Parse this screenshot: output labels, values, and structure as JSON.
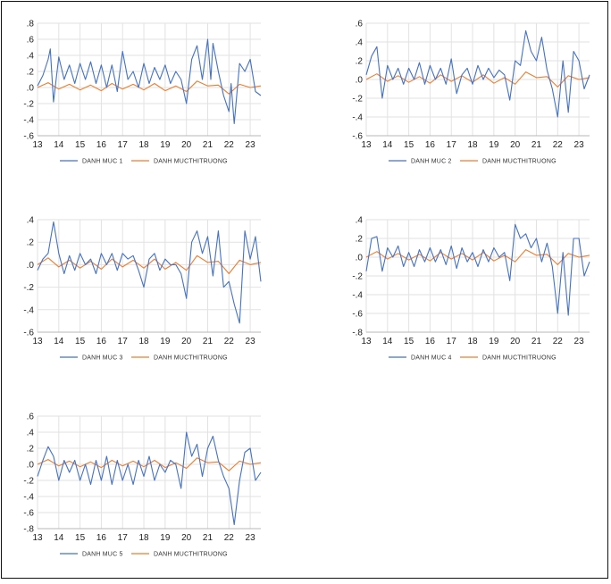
{
  "colors": {
    "portfolio": "#4472c4",
    "market": "#ed7d31",
    "grid": "#e2e2e2",
    "axis": "#b7b7b7"
  },
  "chart_data": [
    {
      "type": "line",
      "id": "dm1",
      "x_ticks": [
        "13",
        "14",
        "15",
        "16",
        "17",
        "18",
        "19",
        "20",
        "21",
        "22",
        "23"
      ],
      "x_range": [
        13.0,
        23.5
      ],
      "y_ticks": [
        ".8",
        ".6",
        ".4",
        ".2",
        ".0",
        "-.2",
        "-.4",
        "-.6"
      ],
      "ylim": [
        -0.6,
        0.8
      ],
      "legend": [
        "DANH MUC 1",
        "DANH MUCTHITRUONG"
      ],
      "series": [
        {
          "name": "DANH MUC 1",
          "x": [
            13.0,
            13.25,
            13.5,
            13.6,
            13.75,
            14.0,
            14.25,
            14.5,
            14.75,
            15.0,
            15.25,
            15.5,
            15.75,
            16.0,
            16.25,
            16.5,
            16.75,
            17.0,
            17.25,
            17.5,
            17.75,
            18.0,
            18.25,
            18.5,
            18.75,
            19.0,
            19.25,
            19.5,
            19.75,
            20.0,
            20.25,
            20.5,
            20.75,
            21.0,
            21.15,
            21.25,
            21.5,
            21.75,
            22.0,
            22.1,
            22.25,
            22.5,
            22.75,
            23.0,
            23.25,
            23.5
          ],
          "values": [
            0.02,
            0.15,
            0.35,
            0.48,
            -0.18,
            0.38,
            0.1,
            0.28,
            0.05,
            0.3,
            0.1,
            0.32,
            0.05,
            0.28,
            0.0,
            0.28,
            -0.05,
            0.45,
            0.1,
            0.2,
            0.0,
            0.3,
            0.05,
            0.25,
            0.1,
            0.28,
            0.05,
            0.2,
            0.1,
            -0.2,
            0.35,
            0.52,
            0.1,
            0.6,
            0.1,
            0.55,
            0.2,
            -0.1,
            -0.3,
            0.05,
            -0.45,
            0.3,
            0.2,
            0.35,
            -0.05,
            -0.1
          ]
        },
        {
          "name": "DANH MUCTHITRUONG",
          "x": [
            13.0,
            13.5,
            14.0,
            14.5,
            15.0,
            15.5,
            16.0,
            16.5,
            17.0,
            17.5,
            18.0,
            18.5,
            19.0,
            19.5,
            20.0,
            20.5,
            21.0,
            21.5,
            22.0,
            22.5,
            23.0,
            23.5
          ],
          "values": [
            0.0,
            0.06,
            -0.02,
            0.04,
            -0.03,
            0.03,
            -0.04,
            0.05,
            -0.02,
            0.04,
            -0.03,
            0.05,
            -0.04,
            0.02,
            -0.05,
            0.08,
            0.02,
            0.03,
            -0.08,
            0.04,
            0.0,
            0.02
          ]
        }
      ]
    },
    {
      "type": "line",
      "id": "dm2",
      "x_ticks": [
        "13",
        "14",
        "15",
        "16",
        "17",
        "18",
        "19",
        "20",
        "21",
        "22",
        "23"
      ],
      "x_range": [
        13.0,
        23.5
      ],
      "y_ticks": [
        ".6",
        ".4",
        ".2",
        ".0",
        "-.2",
        "-.4",
        "-.6"
      ],
      "ylim": [
        -0.6,
        0.6
      ],
      "legend": [
        "DANH MUC 2",
        "DANH MUCTHITRUONG"
      ],
      "series": [
        {
          "name": "DANH MUC 2",
          "x": [
            13.0,
            13.25,
            13.5,
            13.75,
            14.0,
            14.25,
            14.5,
            14.75,
            15.0,
            15.25,
            15.5,
            15.75,
            16.0,
            16.25,
            16.5,
            16.75,
            17.0,
            17.25,
            17.5,
            17.75,
            18.0,
            18.25,
            18.5,
            18.75,
            19.0,
            19.25,
            19.5,
            19.75,
            20.0,
            20.25,
            20.5,
            20.75,
            21.0,
            21.25,
            21.5,
            21.75,
            22.0,
            22.25,
            22.5,
            22.75,
            23.0,
            23.25,
            23.5
          ],
          "values": [
            0.05,
            0.25,
            0.35,
            -0.2,
            0.15,
            0.0,
            0.12,
            -0.05,
            0.12,
            0.0,
            0.18,
            -0.05,
            0.15,
            0.0,
            0.12,
            -0.05,
            0.22,
            -0.15,
            0.05,
            0.12,
            -0.05,
            0.15,
            0.0,
            0.12,
            0.02,
            0.1,
            0.05,
            -0.22,
            0.2,
            0.15,
            0.52,
            0.3,
            0.2,
            0.45,
            0.1,
            -0.1,
            -0.4,
            0.2,
            -0.35,
            0.3,
            0.2,
            -0.1,
            0.05
          ]
        },
        {
          "name": "DANH MUCTHITRUONG",
          "x": [
            13.0,
            13.5,
            14.0,
            14.5,
            15.0,
            15.5,
            16.0,
            16.5,
            17.0,
            17.5,
            18.0,
            18.5,
            19.0,
            19.5,
            20.0,
            20.5,
            21.0,
            21.5,
            22.0,
            22.5,
            23.0,
            23.5
          ],
          "values": [
            0.0,
            0.06,
            -0.02,
            0.04,
            -0.03,
            0.03,
            -0.04,
            0.05,
            -0.02,
            0.04,
            -0.03,
            0.05,
            -0.04,
            0.02,
            -0.05,
            0.08,
            0.02,
            0.03,
            -0.08,
            0.04,
            0.0,
            0.02
          ]
        }
      ]
    },
    {
      "type": "line",
      "id": "dm3",
      "x_ticks": [
        "13",
        "14",
        "15",
        "16",
        "17",
        "18",
        "19",
        "20",
        "21",
        "22",
        "23"
      ],
      "x_range": [
        13.0,
        23.5
      ],
      "y_ticks": [
        ".4",
        ".2",
        ".0",
        "-.2",
        "-.4",
        "-.6"
      ],
      "ylim": [
        -0.6,
        0.4
      ],
      "legend": [
        "DANH MUC 3",
        "DANH MUCTHITRUONG"
      ],
      "series": [
        {
          "name": "DANH MUC 3",
          "x": [
            13.0,
            13.25,
            13.5,
            13.75,
            14.0,
            14.25,
            14.5,
            14.75,
            15.0,
            15.25,
            15.5,
            15.75,
            16.0,
            16.25,
            16.5,
            16.75,
            17.0,
            17.25,
            17.5,
            17.75,
            18.0,
            18.25,
            18.5,
            18.75,
            19.0,
            19.25,
            19.5,
            19.75,
            20.0,
            20.25,
            20.5,
            20.75,
            21.0,
            21.25,
            21.5,
            21.75,
            22.0,
            22.25,
            22.5,
            22.75,
            23.0,
            23.25,
            23.5
          ],
          "values": [
            -0.05,
            0.05,
            0.1,
            0.38,
            0.1,
            -0.08,
            0.08,
            -0.05,
            0.1,
            0.0,
            0.05,
            -0.08,
            0.1,
            0.0,
            0.1,
            -0.05,
            0.1,
            0.05,
            0.08,
            -0.05,
            -0.2,
            0.05,
            0.1,
            -0.05,
            0.05,
            0.0,
            0.0,
            -0.08,
            -0.3,
            0.2,
            0.3,
            0.1,
            0.25,
            -0.1,
            0.3,
            -0.2,
            -0.15,
            -0.35,
            -0.52,
            0.3,
            0.05,
            0.25,
            -0.15
          ]
        },
        {
          "name": "DANH MUCTHITRUONG",
          "x": [
            13.0,
            13.5,
            14.0,
            14.5,
            15.0,
            15.5,
            16.0,
            16.5,
            17.0,
            17.5,
            18.0,
            18.5,
            19.0,
            19.5,
            20.0,
            20.5,
            21.0,
            21.5,
            22.0,
            22.5,
            23.0,
            23.5
          ],
          "values": [
            0.0,
            0.06,
            -0.02,
            0.04,
            -0.03,
            0.03,
            -0.04,
            0.05,
            -0.02,
            0.04,
            -0.03,
            0.05,
            -0.04,
            0.02,
            -0.05,
            0.08,
            0.02,
            0.03,
            -0.08,
            0.04,
            0.0,
            0.02
          ]
        }
      ]
    },
    {
      "type": "line",
      "id": "dm4",
      "x_ticks": [
        "13",
        "14",
        "15",
        "16",
        "17",
        "18",
        "19",
        "20",
        "21",
        "22",
        "23"
      ],
      "x_range": [
        13.0,
        23.5
      ],
      "y_ticks": [
        ".4",
        ".2",
        ".0",
        "-.2",
        "-.4",
        "-.6",
        "-.8"
      ],
      "ylim": [
        -0.8,
        0.4
      ],
      "legend": [
        "DANH MUC 4",
        "DANH MUCTHITRUONG"
      ],
      "series": [
        {
          "name": "DANH MUC 4",
          "x": [
            13.0,
            13.25,
            13.5,
            13.75,
            14.0,
            14.25,
            14.5,
            14.75,
            15.0,
            15.25,
            15.5,
            15.75,
            16.0,
            16.25,
            16.5,
            16.75,
            17.0,
            17.25,
            17.5,
            17.75,
            18.0,
            18.25,
            18.5,
            18.75,
            19.0,
            19.25,
            19.5,
            19.75,
            20.0,
            20.25,
            20.5,
            20.75,
            21.0,
            21.25,
            21.5,
            21.75,
            22.0,
            22.25,
            22.5,
            22.75,
            23.0,
            23.25,
            23.5
          ],
          "values": [
            -0.15,
            0.2,
            0.22,
            -0.15,
            0.1,
            0.0,
            0.12,
            -0.1,
            0.05,
            -0.1,
            0.08,
            -0.05,
            0.1,
            -0.05,
            0.08,
            -0.08,
            0.12,
            -0.12,
            0.1,
            -0.05,
            0.05,
            -0.1,
            0.08,
            -0.05,
            0.1,
            0.0,
            0.05,
            -0.25,
            0.35,
            0.2,
            0.25,
            0.1,
            0.2,
            -0.05,
            0.15,
            -0.1,
            -0.6,
            0.05,
            -0.62,
            0.2,
            0.2,
            -0.2,
            -0.05
          ]
        },
        {
          "name": "DANH MUCTHITRUONG",
          "x": [
            13.0,
            13.5,
            14.0,
            14.5,
            15.0,
            15.5,
            16.0,
            16.5,
            17.0,
            17.5,
            18.0,
            18.5,
            19.0,
            19.5,
            20.0,
            20.5,
            21.0,
            21.5,
            22.0,
            22.5,
            23.0,
            23.5
          ],
          "values": [
            0.0,
            0.06,
            -0.02,
            0.04,
            -0.03,
            0.03,
            -0.04,
            0.05,
            -0.02,
            0.04,
            -0.03,
            0.05,
            -0.04,
            0.02,
            -0.05,
            0.08,
            0.02,
            0.03,
            -0.08,
            0.04,
            0.0,
            0.02
          ]
        }
      ]
    },
    {
      "type": "line",
      "id": "dm5",
      "x_ticks": [
        "13",
        "14",
        "15",
        "16",
        "17",
        "18",
        "19",
        "20",
        "21",
        "22",
        "23"
      ],
      "x_range": [
        13.0,
        23.5
      ],
      "y_ticks": [
        ".6",
        ".4",
        ".2",
        ".0",
        "-.2",
        "-.4",
        "-.6",
        "-.8"
      ],
      "ylim": [
        -0.8,
        0.6
      ],
      "legend": [
        "DANH MUC 5",
        "DANH MUCTHITRUONG"
      ],
      "series": [
        {
          "name": "DANH MUC 5",
          "x": [
            13.0,
            13.25,
            13.5,
            13.75,
            14.0,
            14.25,
            14.5,
            14.75,
            15.0,
            15.25,
            15.5,
            15.75,
            16.0,
            16.25,
            16.5,
            16.75,
            17.0,
            17.25,
            17.5,
            17.75,
            18.0,
            18.25,
            18.5,
            18.75,
            19.0,
            19.25,
            19.5,
            19.75,
            20.0,
            20.25,
            20.5,
            20.75,
            21.0,
            21.25,
            21.5,
            21.75,
            22.0,
            22.25,
            22.5,
            22.75,
            23.0,
            23.25,
            23.5
          ],
          "values": [
            -0.15,
            0.05,
            0.22,
            0.1,
            -0.2,
            0.05,
            -0.1,
            0.05,
            -0.2,
            0.0,
            -0.25,
            0.05,
            -0.2,
            0.1,
            -0.25,
            0.05,
            -0.2,
            0.0,
            -0.25,
            0.05,
            -0.15,
            0.1,
            -0.2,
            0.0,
            -0.1,
            0.05,
            0.0,
            -0.3,
            0.4,
            0.1,
            0.25,
            -0.15,
            0.2,
            0.35,
            0.05,
            -0.15,
            -0.3,
            -0.75,
            -0.2,
            0.15,
            0.2,
            -0.2,
            -0.1
          ]
        },
        {
          "name": "DANH MUCTHITRUONG",
          "x": [
            13.0,
            13.5,
            14.0,
            14.5,
            15.0,
            15.5,
            16.0,
            16.5,
            17.0,
            17.5,
            18.0,
            18.5,
            19.0,
            19.5,
            20.0,
            20.5,
            21.0,
            21.5,
            22.0,
            22.5,
            23.0,
            23.5
          ],
          "values": [
            0.0,
            0.06,
            -0.02,
            0.04,
            -0.03,
            0.03,
            -0.04,
            0.05,
            -0.02,
            0.04,
            -0.03,
            0.05,
            -0.04,
            0.02,
            -0.05,
            0.08,
            0.02,
            0.03,
            -0.08,
            0.04,
            0.0,
            0.02
          ]
        }
      ]
    }
  ]
}
